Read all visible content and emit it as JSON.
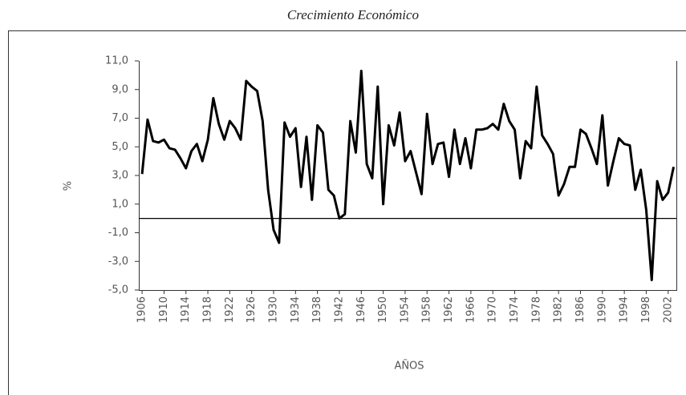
{
  "chart_data": {
    "type": "line",
    "title": "Crecimiento Económico",
    "ylabel": "%",
    "xlabel": "AÑOS",
    "x": [
      1906,
      1907,
      1908,
      1909,
      1910,
      1911,
      1912,
      1913,
      1914,
      1915,
      1916,
      1917,
      1918,
      1919,
      1920,
      1921,
      1922,
      1923,
      1924,
      1925,
      1926,
      1927,
      1928,
      1929,
      1930,
      1931,
      1932,
      1933,
      1934,
      1935,
      1936,
      1937,
      1938,
      1939,
      1940,
      1941,
      1942,
      1943,
      1944,
      1945,
      1946,
      1947,
      1948,
      1949,
      1950,
      1951,
      1952,
      1953,
      1954,
      1955,
      1956,
      1957,
      1958,
      1959,
      1960,
      1961,
      1962,
      1963,
      1964,
      1965,
      1966,
      1967,
      1968,
      1969,
      1970,
      1971,
      1972,
      1973,
      1974,
      1975,
      1976,
      1977,
      1978,
      1979,
      1980,
      1981,
      1982,
      1983,
      1984,
      1985,
      1986,
      1987,
      1988,
      1989,
      1990,
      1991,
      1992,
      1993,
      1994,
      1995,
      1996,
      1997,
      1998,
      1999,
      2000,
      2001,
      2002,
      2003
    ],
    "series": [
      {
        "name": "Crecimiento",
        "color": "#000000",
        "values": [
          3.1,
          6.9,
          5.4,
          5.3,
          5.5,
          4.9,
          4.8,
          4.2,
          3.5,
          4.7,
          5.2,
          4.0,
          5.5,
          8.4,
          6.6,
          5.5,
          6.8,
          6.3,
          5.5,
          9.6,
          9.2,
          8.9,
          6.8,
          2.0,
          -0.8,
          -1.7,
          6.7,
          5.7,
          6.3,
          2.2,
          5.7,
          1.3,
          6.5,
          6.0,
          2.0,
          1.6,
          0.0,
          0.3,
          6.8,
          4.6,
          10.3,
          3.8,
          2.8,
          9.2,
          1.0,
          6.5,
          5.1,
          7.4,
          4.0,
          4.7,
          3.2,
          1.7,
          7.3,
          3.8,
          5.2,
          5.3,
          2.9,
          6.2,
          3.8,
          5.6,
          3.5,
          6.2,
          6.2,
          6.3,
          6.6,
          6.2,
          8.0,
          6.8,
          6.2,
          2.8,
          5.4,
          4.9,
          9.2,
          5.8,
          5.2,
          4.5,
          1.6,
          2.4,
          3.6,
          3.6,
          6.2,
          5.9,
          4.9,
          3.8,
          7.2,
          2.3,
          4.0,
          5.6,
          5.2,
          5.1,
          2.0,
          3.4,
          0.6,
          -4.3,
          2.6,
          1.3,
          1.8,
          3.6
        ]
      }
    ],
    "xlim": [
      1905.4,
      2003.5
    ],
    "xticks": [
      1906,
      1910,
      1914,
      1918,
      1922,
      1926,
      1930,
      1934,
      1938,
      1942,
      1946,
      1950,
      1954,
      1958,
      1962,
      1966,
      1970,
      1974,
      1978,
      1982,
      1986,
      1990,
      1994,
      1998,
      2002
    ],
    "ylim": [
      -5,
      11
    ],
    "yticks": [
      {
        "value": 11,
        "label": "11,0"
      },
      {
        "value": 9,
        "label": "9,0"
      },
      {
        "value": 7,
        "label": "7,0"
      },
      {
        "value": 5,
        "label": "5,0"
      },
      {
        "value": 3,
        "label": "3,0"
      },
      {
        "value": 1,
        "label": "1,0"
      },
      {
        "value": -1,
        "label": "-1,0"
      },
      {
        "value": -3,
        "label": "-3,0"
      },
      {
        "value": -5,
        "label": "-5,0"
      }
    ]
  }
}
